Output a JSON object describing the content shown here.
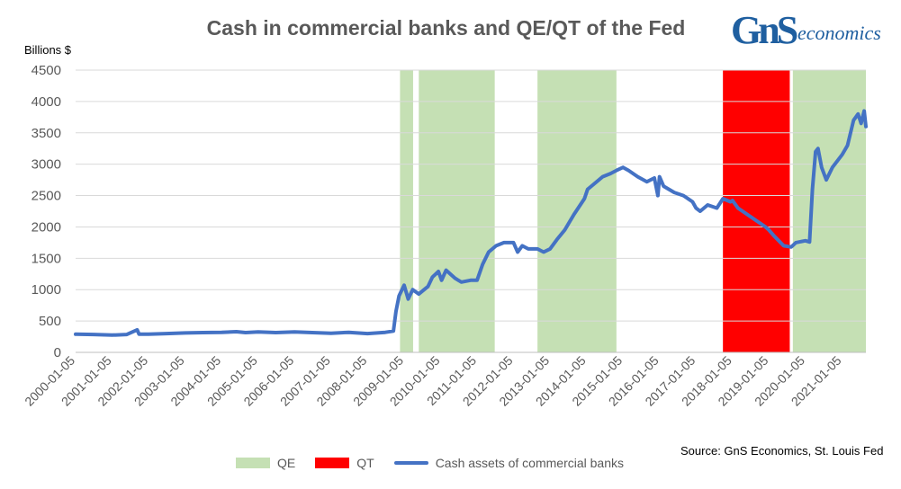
{
  "chart_data": {
    "type": "line",
    "title": "Cash in commercial banks and QE/QT of the Fed",
    "ylabel": "Billions $",
    "ylim": [
      0,
      4500
    ],
    "yticks": [
      0,
      500,
      1000,
      1500,
      2000,
      2500,
      3000,
      3500,
      4000,
      4500
    ],
    "xlim": [
      "2000-01-05",
      "2021-09-01"
    ],
    "xticks": [
      "2000-01-05",
      "2001-01-05",
      "2002-01-05",
      "2003-01-05",
      "2004-01-05",
      "2005-01-05",
      "2006-01-05",
      "2007-01-05",
      "2008-01-05",
      "2009-01-05",
      "2010-01-05",
      "2011-01-05",
      "2012-01-05",
      "2013-01-05",
      "2014-01-05",
      "2015-01-05",
      "2016-01-05",
      "2017-01-05",
      "2018-01-05",
      "2019-01-05",
      "2020-01-05",
      "2021-01-05"
    ],
    "grid": "horizontal",
    "legend_position": "bottom",
    "bands": [
      {
        "name": "QE",
        "color": "#c5e0b4",
        "start": "2008-11-25",
        "end": "2009-04-05"
      },
      {
        "name": "QE",
        "color": "#c5e0b4",
        "start": "2009-06-01",
        "end": "2011-07-01"
      },
      {
        "name": "QE",
        "color": "#c5e0b4",
        "start": "2012-09-01",
        "end": "2014-10-31"
      },
      {
        "name": "QT",
        "color": "#ff0000",
        "start": "2017-10-01",
        "end": "2019-08-01"
      },
      {
        "name": "QE",
        "color": "#c5e0b4",
        "start": "2019-09-01",
        "end": "2021-09-01"
      }
    ],
    "series": [
      {
        "name": "Cash assets of commercial banks",
        "color": "#4472c4",
        "points": [
          [
            "2000-01-05",
            290
          ],
          [
            "2000-07-01",
            285
          ],
          [
            "2001-01-05",
            275
          ],
          [
            "2001-06-01",
            285
          ],
          [
            "2001-09-12",
            360
          ],
          [
            "2001-10-01",
            290
          ],
          [
            "2002-01-05",
            290
          ],
          [
            "2002-07-01",
            300
          ],
          [
            "2003-01-05",
            310
          ],
          [
            "2003-07-01",
            315
          ],
          [
            "2004-01-05",
            320
          ],
          [
            "2004-06-01",
            330
          ],
          [
            "2004-09-01",
            315
          ],
          [
            "2005-01-05",
            325
          ],
          [
            "2005-07-01",
            315
          ],
          [
            "2006-01-05",
            325
          ],
          [
            "2006-07-01",
            315
          ],
          [
            "2007-01-05",
            305
          ],
          [
            "2007-07-01",
            320
          ],
          [
            "2008-01-05",
            300
          ],
          [
            "2008-07-01",
            320
          ],
          [
            "2008-09-20",
            340
          ],
          [
            "2008-10-15",
            650
          ],
          [
            "2008-11-15",
            900
          ],
          [
            "2009-01-05",
            1070
          ],
          [
            "2009-02-15",
            850
          ],
          [
            "2009-04-01",
            1000
          ],
          [
            "2009-06-01",
            930
          ],
          [
            "2009-09-01",
            1050
          ],
          [
            "2009-10-15",
            1200
          ],
          [
            "2009-12-15",
            1290
          ],
          [
            "2010-01-15",
            1150
          ],
          [
            "2010-03-01",
            1310
          ],
          [
            "2010-06-01",
            1180
          ],
          [
            "2010-08-01",
            1120
          ],
          [
            "2010-11-01",
            1150
          ],
          [
            "2011-01-05",
            1150
          ],
          [
            "2011-03-01",
            1400
          ],
          [
            "2011-05-01",
            1600
          ],
          [
            "2011-07-15",
            1700
          ],
          [
            "2011-10-01",
            1750
          ],
          [
            "2012-01-05",
            1750
          ],
          [
            "2012-02-15",
            1600
          ],
          [
            "2012-04-01",
            1700
          ],
          [
            "2012-06-01",
            1650
          ],
          [
            "2012-09-01",
            1650
          ],
          [
            "2012-11-01",
            1600
          ],
          [
            "2013-01-05",
            1650
          ],
          [
            "2013-03-15",
            1800
          ],
          [
            "2013-06-01",
            1950
          ],
          [
            "2013-09-01",
            2200
          ],
          [
            "2013-12-15",
            2450
          ],
          [
            "2014-01-15",
            2600
          ],
          [
            "2014-04-01",
            2700
          ],
          [
            "2014-06-15",
            2800
          ],
          [
            "2014-09-01",
            2850
          ],
          [
            "2014-11-01",
            2900
          ],
          [
            "2015-01-05",
            2950
          ],
          [
            "2015-03-01",
            2900
          ],
          [
            "2015-06-01",
            2800
          ],
          [
            "2015-09-01",
            2720
          ],
          [
            "2015-11-15",
            2780
          ],
          [
            "2015-12-20",
            2500
          ],
          [
            "2016-01-05",
            2800
          ],
          [
            "2016-02-15",
            2650
          ],
          [
            "2016-06-01",
            2550
          ],
          [
            "2016-09-01",
            2500
          ],
          [
            "2016-12-01",
            2400
          ],
          [
            "2017-01-05",
            2300
          ],
          [
            "2017-02-15",
            2250
          ],
          [
            "2017-05-01",
            2350
          ],
          [
            "2017-08-01",
            2300
          ],
          [
            "2017-10-01",
            2450
          ],
          [
            "2017-12-15",
            2400
          ],
          [
            "2018-01-05",
            2420
          ],
          [
            "2018-03-01",
            2300
          ],
          [
            "2018-06-01",
            2200
          ],
          [
            "2018-09-01",
            2100
          ],
          [
            "2018-12-01",
            2000
          ],
          [
            "2019-01-05",
            1950
          ],
          [
            "2019-03-01",
            1850
          ],
          [
            "2019-06-01",
            1700
          ],
          [
            "2019-08-15",
            1680
          ],
          [
            "2019-10-01",
            1750
          ],
          [
            "2020-01-05",
            1780
          ],
          [
            "2020-02-15",
            1760
          ],
          [
            "2020-03-15",
            2600
          ],
          [
            "2020-04-15",
            3200
          ],
          [
            "2020-05-10",
            3250
          ],
          [
            "2020-06-15",
            2950
          ],
          [
            "2020-08-01",
            2750
          ],
          [
            "2020-10-01",
            2950
          ],
          [
            "2021-01-05",
            3150
          ],
          [
            "2021-03-01",
            3300
          ],
          [
            "2021-05-01",
            3700
          ],
          [
            "2021-06-15",
            3800
          ],
          [
            "2021-07-15",
            3650
          ],
          [
            "2021-08-15",
            3850
          ],
          [
            "2021-09-01",
            3600
          ]
        ]
      }
    ],
    "legend": [
      {
        "label": "QE",
        "kind": "box",
        "color": "#c5e0b4"
      },
      {
        "label": "QT",
        "kind": "box",
        "color": "#ff0000"
      },
      {
        "label": "Cash assets of commercial banks",
        "kind": "line",
        "color": "#4472c4"
      }
    ],
    "source": "Source: GnS Economics, St. Louis Fed"
  },
  "logo": {
    "mark": "GnS",
    "text": "economics"
  }
}
